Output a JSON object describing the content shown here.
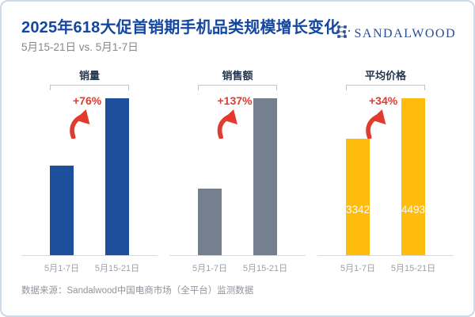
{
  "header": {
    "title": "2025年618大促首销期手机品类规模增长变化",
    "subtitle": "5月15-21日 vs. 5月1-7日",
    "logo_text": "SANDALWOOD",
    "logo_icon": "sandalwood-dot-grid-icon",
    "title_color": "#1447a0",
    "brand_color": "#2b4d92"
  },
  "chart_data": {
    "type": "bar",
    "comparison": "5月15-21日 vs. 5月1-7日",
    "annotation_color": "#e23a2e",
    "categories": [
      "5月1-7日",
      "5月15-21日"
    ],
    "groups": [
      {
        "title": "销量",
        "growth_label": "+76%",
        "categories": [
          "5月1-7日",
          "5月15-21日"
        ],
        "values": [
          100,
          176
        ],
        "values_shown_on_chart": false,
        "bar_color": "#1d4f9d"
      },
      {
        "title": "销售额",
        "growth_label": "+137%",
        "categories": [
          "5月1-7日",
          "5月15-21日"
        ],
        "values": [
          100,
          237
        ],
        "values_shown_on_chart": false,
        "bar_color": "#75808e"
      },
      {
        "title": "平均价格",
        "growth_label": "+34%",
        "categories": [
          "5月1-7日",
          "5月15-21日"
        ],
        "values": [
          3342,
          4493
        ],
        "values_shown_on_chart": true,
        "value_labels": [
          "3342",
          "4493"
        ],
        "bar_color": "#ffbc0d"
      }
    ]
  },
  "footer": {
    "source": "数据来源：Sandalwood中国电商市场（全平台）监测数据"
  }
}
